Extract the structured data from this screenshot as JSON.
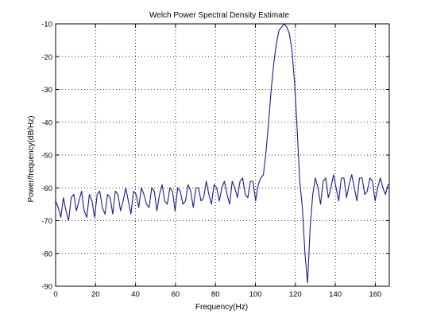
{
  "chart_data": {
    "type": "line",
    "title": "Welch Power Spectral Density Estimate",
    "xlabel": "Frequency(Hz)",
    "ylabel": "Power/frequency(dB/Hz)",
    "xlim": [
      0,
      167
    ],
    "ylim": [
      -90,
      -10
    ],
    "xticks": [
      0,
      20,
      40,
      60,
      80,
      100,
      120,
      140,
      160
    ],
    "yticks": [
      -10,
      -20,
      -30,
      -40,
      -50,
      -60,
      -70,
      -80,
      -90
    ],
    "grid": true,
    "line_color": "#1c1c8c",
    "series": [
      {
        "x": [
          0,
          1.3,
          2.6,
          3.9,
          5.2,
          6.5,
          7.8,
          9.1,
          10.4,
          11.7,
          13.0,
          14.3,
          15.6,
          16.9,
          18.2,
          19.5,
          20.8,
          22.1,
          23.4,
          24.7,
          26.0,
          27.3,
          28.6,
          29.9,
          31.2,
          32.5,
          33.8,
          35.1,
          36.4,
          37.7,
          39.0,
          40.3,
          41.6,
          42.9,
          44.2,
          45.5,
          46.8,
          48.1,
          49.4,
          50.7,
          52.0,
          53.3,
          54.6,
          55.9,
          57.2,
          58.5,
          59.8,
          61.1,
          62.4,
          63.7,
          65.0,
          66.3,
          67.6,
          68.9,
          70.2,
          71.5,
          72.8,
          74.1,
          75.4,
          76.7,
          78.0,
          79.3,
          80.6,
          81.9,
          83.2,
          84.5,
          85.8,
          87.1,
          88.4,
          89.7,
          91.0,
          92.3,
          93.6,
          94.9,
          96.2,
          97.5,
          98.8,
          100.1,
          101.4,
          102.7,
          104.0,
          105.3,
          106.6,
          107.9,
          109.2,
          110.5,
          111.8,
          113.1,
          114.4,
          115.7,
          117.0,
          118.3,
          119.6,
          120.9,
          122.2,
          123.5,
          124.8,
          126.1,
          127.4,
          128.7,
          130.0,
          131.3,
          132.6,
          133.9,
          135.2,
          136.5,
          137.8,
          139.1,
          140.4,
          141.7,
          143.0,
          144.3,
          145.6,
          146.9,
          148.2,
          149.5,
          150.8,
          152.1,
          153.4,
          154.7,
          156.0,
          157.3,
          158.6,
          159.9,
          161.2,
          162.5,
          163.8,
          165.1,
          166.4,
          167.0
        ],
        "y": [
          -64,
          -66,
          -69,
          -63,
          -67,
          -70,
          -63,
          -62,
          -67,
          -64,
          -61,
          -67,
          -69,
          -62,
          -64,
          -69,
          -62,
          -61,
          -66,
          -68,
          -62,
          -63,
          -68,
          -61,
          -62,
          -67,
          -64,
          -60,
          -64,
          -68,
          -61,
          -62,
          -66,
          -60,
          -62,
          -65,
          -66,
          -60,
          -61,
          -67,
          -62,
          -59,
          -64,
          -65,
          -60,
          -61,
          -67,
          -60,
          -61,
          -65,
          -64,
          -59,
          -61,
          -66,
          -60,
          -60,
          -64,
          -63,
          -58,
          -62,
          -65,
          -59,
          -60,
          -64,
          -60,
          -58,
          -62,
          -65,
          -58,
          -60,
          -63,
          -58,
          -57,
          -62,
          -63,
          -58,
          -58,
          -64,
          -59,
          -57,
          -56,
          -49,
          -40,
          -30,
          -22,
          -16,
          -12,
          -11,
          -10,
          -11,
          -13,
          -18,
          -28,
          -42,
          -58,
          -66,
          -80,
          -89,
          -72,
          -62,
          -57,
          -60,
          -65,
          -58,
          -57,
          -63,
          -60,
          -56,
          -60,
          -64,
          -57,
          -57,
          -63,
          -59,
          -56,
          -60,
          -64,
          -57,
          -57,
          -62,
          -61,
          -57,
          -58,
          -64,
          -60,
          -57,
          -60,
          -62,
          -59,
          -59
        ]
      }
    ]
  }
}
